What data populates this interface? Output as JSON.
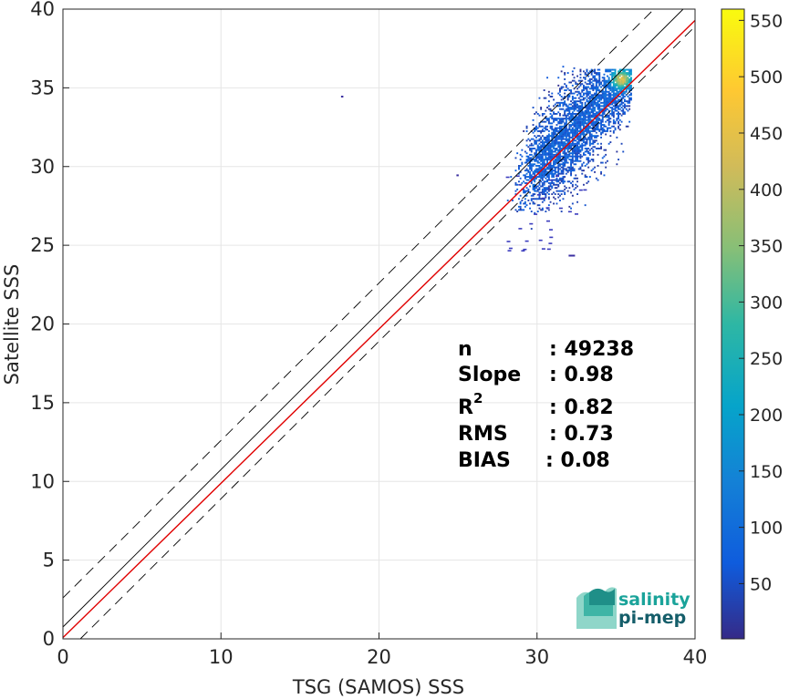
{
  "chart_data": {
    "type": "heatmap",
    "description_kind": "2D density scatter (satellite vs in-situ)",
    "xlabel": "TSG (SAMOS) SSS",
    "ylabel": "Satellite SSS",
    "xlim": [
      0,
      40
    ],
    "ylim": [
      0,
      40
    ],
    "x_ticks": [
      "0",
      "10",
      "20",
      "30",
      "40"
    ],
    "y_ticks": [
      "0",
      "5",
      "10",
      "15",
      "20",
      "25",
      "30",
      "35",
      "40"
    ],
    "grid": true,
    "colormap": "parula",
    "colorbar": {
      "range": [
        1,
        560
      ],
      "ticks": [
        "50",
        "100",
        "150",
        "200",
        "250",
        "300",
        "350",
        "400",
        "450",
        "500",
        "550"
      ]
    },
    "lines": [
      {
        "kind": "one-to-one",
        "color": "#000000",
        "style": "solid",
        "intercept": 0.75,
        "slope": 1
      },
      {
        "kind": "one-to-one-offset-upper",
        "color": "#000000",
        "style": "dashed",
        "intercept": 2.6,
        "slope": 1
      },
      {
        "kind": "one-to-one-offset-lower",
        "color": "#000000",
        "style": "dashed",
        "intercept": -1.1,
        "slope": 1
      },
      {
        "kind": "regression",
        "color": "#e00000",
        "style": "solid",
        "intercept": 0.08,
        "slope": 0.98
      }
    ],
    "density_cluster": {
      "x_range": [
        28,
        36
      ],
      "y_range": [
        24.3,
        36.5
      ],
      "center": [
        35.3,
        35.5
      ],
      "peak_count": 560
    },
    "outliers": [
      [
        17.6,
        34.5
      ],
      [
        24.9,
        29.5
      ],
      [
        32.0,
        24.4
      ]
    ],
    "stats": [
      {
        "label": "n",
        "value": ": 49238"
      },
      {
        "label": "Slope",
        "value": ": 0.98"
      },
      {
        "label": "R",
        "sup": "2",
        "value": ": 0.82"
      },
      {
        "label": "RMS",
        "value": ": 0.73"
      },
      {
        "label": "BIAS",
        "value": ": 0.08"
      }
    ]
  },
  "logo": {
    "line1": "salinity",
    "line2": "pi-mep"
  },
  "colors": {
    "logo_teal": "#1aa39a",
    "logo_dark": "#155e6a",
    "regression": "#e00000"
  }
}
